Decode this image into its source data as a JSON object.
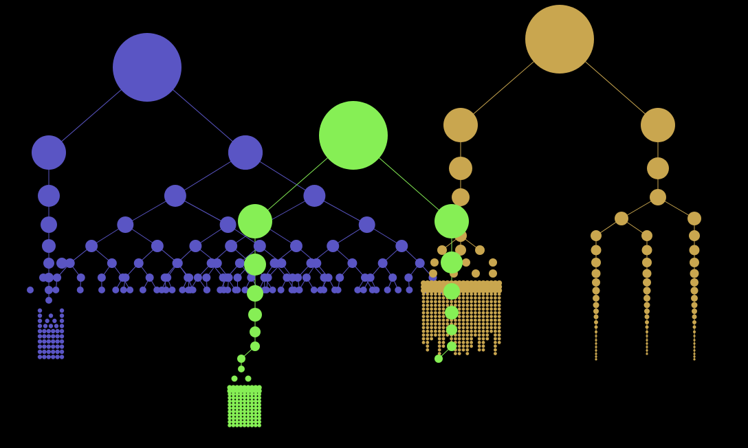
{
  "background": "#000000",
  "trees": [
    {
      "name": "blue-tree",
      "color": "#5a55c4",
      "edge_color": "#5a55c4",
      "generations": 9
    },
    {
      "name": "green-tree",
      "color": "#86ef55",
      "edge_color": "#86ef55",
      "generations": 8
    },
    {
      "name": "gold-tree",
      "color": "#c9a64f",
      "edge_color": "#c9a64f",
      "generations": 8
    }
  ]
}
